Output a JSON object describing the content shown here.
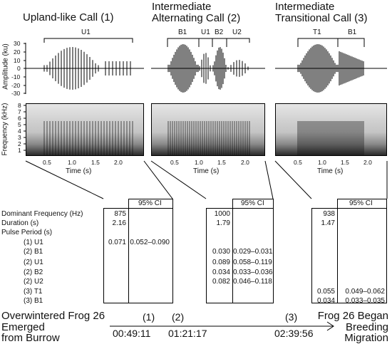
{
  "panels": [
    {
      "title": "Upland-like Call (1)",
      "segments": [
        "U1"
      ]
    },
    {
      "title_line1": "Intermediate",
      "title_line2": "Alternating Call (2)",
      "segments": [
        "B1",
        "U1",
        "B2",
        "U2"
      ]
    },
    {
      "title_line1": "Intermediate",
      "title_line2": "Transitional Call (3)",
      "segments": [
        "T1",
        "B1"
      ]
    }
  ],
  "axes": {
    "amplitude_label": "Amplitude (ku)",
    "amplitude_ticks": [
      "30",
      "20",
      "10",
      "0",
      "-10",
      "-20",
      "-30"
    ],
    "frequency_label": "Frequency (kHz)",
    "frequency_ticks": [
      "8",
      "7",
      "6",
      "5",
      "4",
      "3",
      "2",
      "1"
    ],
    "time_label": "Time (s)",
    "time_ticks": [
      "0.5",
      "1.0",
      "1.5",
      "2.0"
    ]
  },
  "table": {
    "ci_header": "95% CI",
    "rows": [
      "Dominant Frequency (Hz)",
      "Duration (s)",
      "Pulse Period (s)",
      "(1) U1",
      "(2) B1",
      "(2) U1",
      "(2) B2",
      "(2) U2",
      "(3) T1",
      "(3) B1"
    ],
    "call1": {
      "dom": "875",
      "dur": "2.16",
      "u1": "0.071",
      "u1_ci": "0.052–0.090"
    },
    "call2": {
      "dom": "1000",
      "dur": "1.79",
      "b1": "0.030",
      "b1_ci": "0.029–0.031",
      "u1": "0.089",
      "u1_ci": "0.058–0.119",
      "b2": "0.034",
      "b2_ci": "0.033–0.036",
      "u2": "0.082",
      "u2_ci": "0.046–0.118"
    },
    "call3": {
      "dom": "938",
      "dur": "1.47",
      "t1": "0.055",
      "t1_ci": "0.049–0.062",
      "b1": "0.034",
      "b1_ci": "0.033–0.035"
    }
  },
  "timeline": {
    "left_line1": "Overwintered Frog 26",
    "left_line2": "Emerged",
    "left_line3": "from Burrow",
    "right_line1": "Frog 26 Began",
    "right_line2": "Breeding",
    "right_line3": "Migration",
    "markers": [
      "(1)",
      "(2)",
      "(3)"
    ],
    "times": [
      "00:49:11",
      "01:21:17",
      "02:39:56"
    ]
  }
}
